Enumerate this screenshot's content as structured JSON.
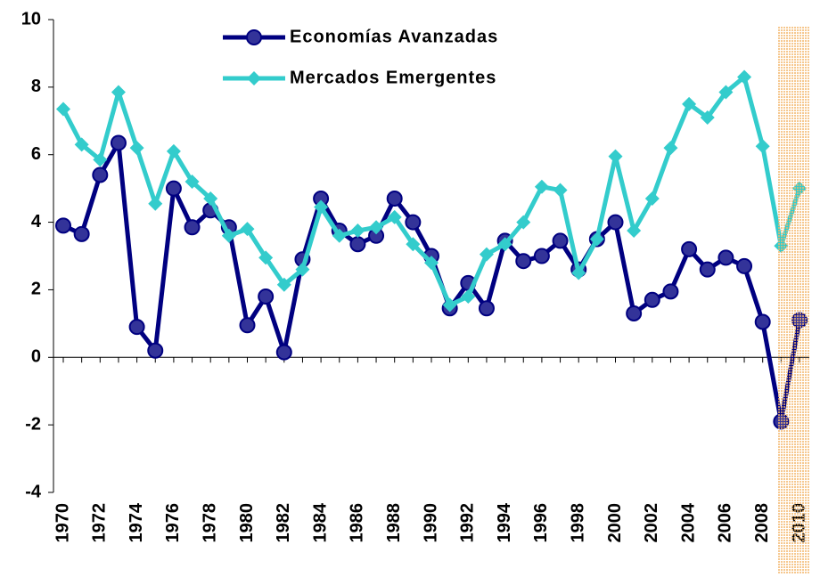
{
  "chart_data": {
    "type": "line",
    "x": [
      1970,
      1971,
      1972,
      1973,
      1974,
      1975,
      1976,
      1977,
      1978,
      1979,
      1980,
      1981,
      1982,
      1983,
      1984,
      1985,
      1986,
      1987,
      1988,
      1989,
      1990,
      1991,
      1992,
      1993,
      1994,
      1995,
      1996,
      1997,
      1998,
      1999,
      2000,
      2001,
      2002,
      2003,
      2004,
      2005,
      2006,
      2007,
      2008,
      2009,
      2010
    ],
    "xticks": [
      1970,
      1972,
      1974,
      1976,
      1978,
      1980,
      1982,
      1984,
      1986,
      1988,
      1990,
      1992,
      1994,
      1996,
      1998,
      2000,
      2002,
      2004,
      2006,
      2008,
      2010
    ],
    "xlim": [
      1970,
      2010
    ],
    "ylim": [
      -4,
      10
    ],
    "yticks": [
      -4,
      -2,
      0,
      2,
      4,
      6,
      8,
      10
    ],
    "highlight_x": [
      2009,
      2010
    ],
    "highlight_color": "#f3b56a",
    "series": [
      {
        "name": "Economías Avanzadas",
        "color": "#000080",
        "marker": "circle",
        "values": [
          3.9,
          3.65,
          5.4,
          6.35,
          0.9,
          0.2,
          5.0,
          3.85,
          4.35,
          3.85,
          0.95,
          1.8,
          0.15,
          2.9,
          4.7,
          3.75,
          3.35,
          3.6,
          4.7,
          4.0,
          3.0,
          1.45,
          2.2,
          1.45,
          3.45,
          2.85,
          3.0,
          3.45,
          2.6,
          3.5,
          4.0,
          1.3,
          1.7,
          1.95,
          3.2,
          2.6,
          2.95,
          2.7,
          1.05,
          -1.9,
          1.1
        ]
      },
      {
        "name": "Mercados Emergentes",
        "color": "#33cccc",
        "marker": "diamond",
        "values": [
          7.35,
          6.3,
          5.85,
          7.85,
          6.2,
          4.55,
          6.1,
          5.2,
          4.7,
          3.6,
          3.8,
          2.95,
          2.15,
          2.6,
          4.45,
          3.6,
          3.75,
          3.85,
          4.15,
          3.35,
          2.8,
          1.55,
          1.8,
          3.05,
          3.35,
          4.0,
          5.05,
          4.95,
          2.5,
          3.5,
          5.95,
          3.75,
          4.7,
          6.2,
          7.5,
          7.1,
          7.85,
          8.3,
          6.25,
          3.3,
          5.0
        ]
      }
    ]
  }
}
